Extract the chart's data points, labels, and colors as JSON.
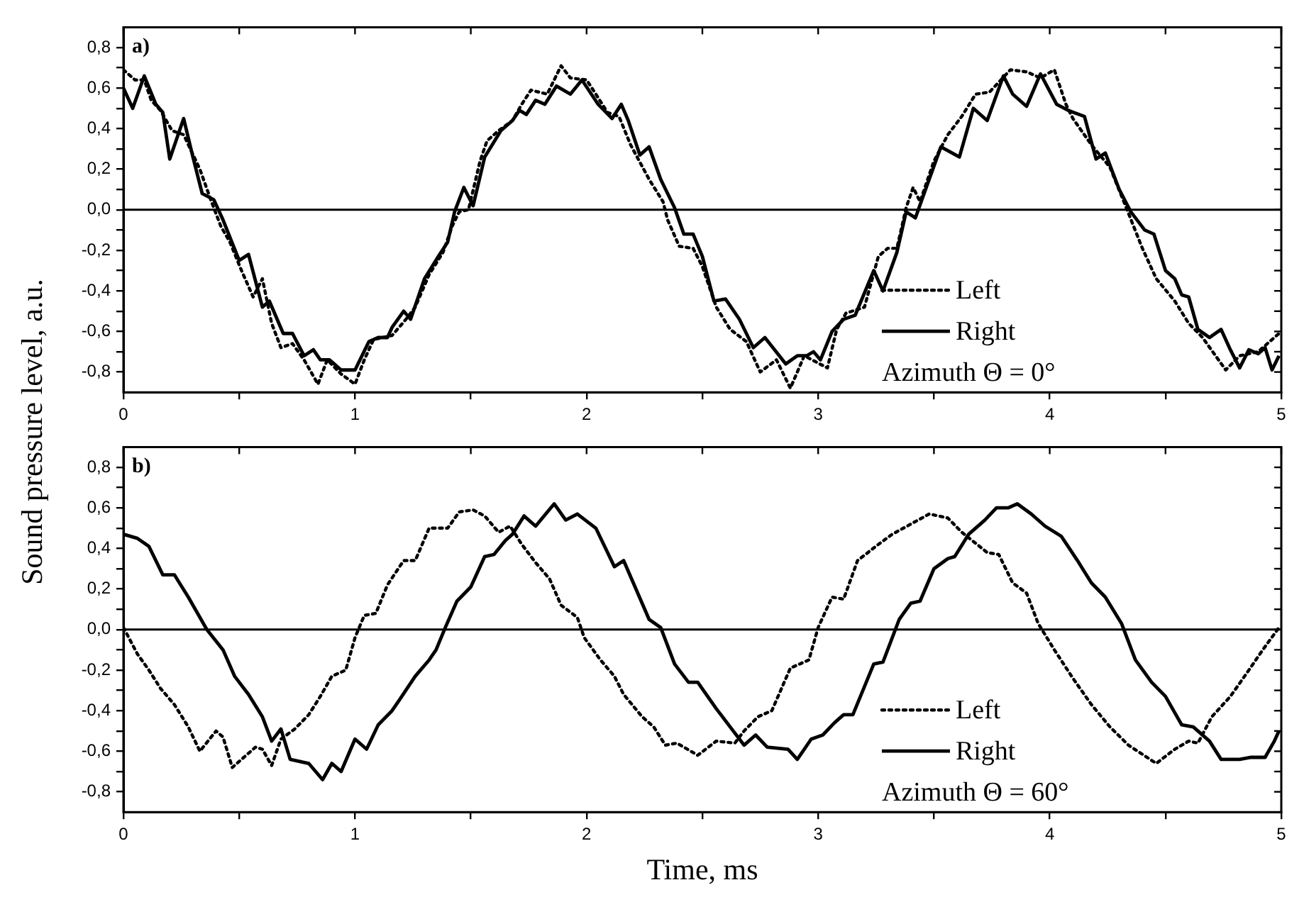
{
  "chart_data": [
    {
      "type": "line",
      "ylabel": "Sound pressure level, a.u.",
      "annotations": [
        "a)",
        "Azimuth Θ = 0°"
      ],
      "legend": "bottom right",
      "grid": false,
      "marker": "none",
      "xlim": [
        0,
        5
      ],
      "ylim": [
        -0.9,
        0.9
      ],
      "xticks": [
        0,
        {
          "value": 0.5,
          "label": null
        },
        1,
        {
          "value": 1.5,
          "label": null
        },
        2,
        {
          "value": 2.5,
          "label": null
        },
        3,
        {
          "value": 3.5,
          "label": null
        },
        4,
        {
          "value": 4.5,
          "label": null
        },
        5
      ],
      "yticks": [
        {
          "value": -0.8,
          "label": "-0,8"
        },
        {
          "value": -0.7,
          "label": null
        },
        {
          "value": -0.6,
          "label": "-0,6"
        },
        {
          "value": -0.5,
          "label": null
        },
        {
          "value": -0.4,
          "label": "-0,4"
        },
        {
          "value": -0.3,
          "label": null
        },
        {
          "value": -0.2,
          "label": "-0,2"
        },
        {
          "value": -0.1,
          "label": null
        },
        {
          "value": 0,
          "label": "0,0"
        },
        {
          "value": 0.1,
          "label": null
        },
        {
          "value": 0.2,
          "label": "0,2"
        },
        {
          "value": 0.3,
          "label": null
        },
        {
          "value": 0.4,
          "label": "0,4"
        },
        {
          "value": 0.5,
          "label": null
        },
        {
          "value": 0.6,
          "label": "0,6"
        },
        {
          "value": 0.7,
          "label": null
        },
        {
          "value": 0.8,
          "label": "0,8"
        }
      ],
      "ref_lines": [
        {
          "axis": "y",
          "value": 0,
          "color": "#000000",
          "line_style": "solid"
        }
      ],
      "series": [
        {
          "name": "Left",
          "color": "#000000",
          "line_style": "dotted",
          "x": [
            0,
            0.05,
            0.09,
            0.12,
            0.16,
            0.21,
            0.26,
            0.33,
            0.38,
            0.42,
            0.46,
            0.51,
            0.56,
            0.6,
            0.64,
            0.68,
            0.73,
            0.78,
            0.84,
            0.88,
            0.94,
            1.0,
            1.04,
            1.08,
            1.16,
            1.22,
            1.26,
            1.32,
            1.38,
            1.42,
            1.45,
            1.49,
            1.54,
            1.57,
            1.62,
            1.68,
            1.72,
            1.76,
            1.83,
            1.89,
            1.93,
            2.0,
            2.04,
            2.09,
            2.14,
            2.19,
            2.27,
            2.33,
            2.35,
            2.4,
            2.46,
            2.5,
            2.56,
            2.62,
            2.69,
            2.75,
            2.82,
            2.88,
            2.94,
            3.04,
            3.08,
            3.12,
            3.2,
            3.26,
            3.3,
            3.34,
            3.38,
            3.41,
            3.44,
            3.5,
            3.56,
            3.62,
            3.68,
            3.74,
            3.83,
            3.9,
            3.96,
            4.02,
            4.07,
            4.1,
            4.18,
            4.26,
            4.32,
            4.4,
            4.46,
            4.54,
            4.6,
            4.66,
            4.76,
            4.82,
            4.9,
            4.99
          ],
          "values": [
            0.69,
            0.64,
            0.64,
            0.54,
            0.49,
            0.39,
            0.37,
            0.2,
            0.04,
            -0.08,
            -0.16,
            -0.3,
            -0.43,
            -0.34,
            -0.56,
            -0.68,
            -0.66,
            -0.74,
            -0.86,
            -0.74,
            -0.81,
            -0.86,
            -0.74,
            -0.64,
            -0.62,
            -0.54,
            -0.48,
            -0.32,
            -0.21,
            -0.08,
            -0.01,
            0.0,
            0.24,
            0.34,
            0.39,
            0.44,
            0.52,
            0.59,
            0.57,
            0.71,
            0.65,
            0.64,
            0.57,
            0.48,
            0.46,
            0.32,
            0.15,
            0.04,
            -0.05,
            -0.18,
            -0.19,
            -0.28,
            -0.48,
            -0.59,
            -0.65,
            -0.8,
            -0.74,
            -0.88,
            -0.72,
            -0.78,
            -0.59,
            -0.51,
            -0.48,
            -0.23,
            -0.19,
            -0.19,
            0.01,
            0.11,
            0.04,
            0.24,
            0.37,
            0.46,
            0.57,
            0.58,
            0.69,
            0.68,
            0.65,
            0.69,
            0.52,
            0.45,
            0.32,
            0.21,
            0.04,
            -0.19,
            -0.34,
            -0.45,
            -0.56,
            -0.63,
            -0.79,
            -0.72,
            -0.7,
            -0.61
          ]
        },
        {
          "name": "Right",
          "color": "#000000",
          "line_style": "solid",
          "x": [
            0,
            0.04,
            0.09,
            0.14,
            0.17,
            0.2,
            0.26,
            0.3,
            0.34,
            0.39,
            0.43,
            0.5,
            0.54,
            0.6,
            0.63,
            0.69,
            0.73,
            0.78,
            0.82,
            0.85,
            0.89,
            0.94,
            1.0,
            1.06,
            1.1,
            1.14,
            1.16,
            1.21,
            1.24,
            1.3,
            1.36,
            1.4,
            1.43,
            1.47,
            1.51,
            1.56,
            1.63,
            1.68,
            1.71,
            1.74,
            1.78,
            1.82,
            1.87,
            1.93,
            1.98,
            2.05,
            2.11,
            2.15,
            2.18,
            2.23,
            2.27,
            2.32,
            2.38,
            2.42,
            2.46,
            2.5,
            2.55,
            2.6,
            2.66,
            2.72,
            2.77,
            2.86,
            2.91,
            2.95,
            2.98,
            3.01,
            3.06,
            3.11,
            3.16,
            3.24,
            3.28,
            3.34,
            3.38,
            3.42,
            3.47,
            3.53,
            3.61,
            3.67,
            3.73,
            3.8,
            3.84,
            3.9,
            3.96,
            4.03,
            4.08,
            4.15,
            4.2,
            4.24,
            4.3,
            4.35,
            4.41,
            4.45,
            4.5,
            4.54,
            4.57,
            4.6,
            4.64,
            4.69,
            4.74,
            4.78,
            4.82,
            4.86,
            4.9,
            4.93,
            4.96,
            4.99
          ],
          "values": [
            0.6,
            0.5,
            0.66,
            0.52,
            0.48,
            0.25,
            0.45,
            0.26,
            0.08,
            0.05,
            -0.05,
            -0.25,
            -0.22,
            -0.48,
            -0.45,
            -0.61,
            -0.61,
            -0.72,
            -0.69,
            -0.74,
            -0.74,
            -0.79,
            -0.79,
            -0.65,
            -0.63,
            -0.63,
            -0.58,
            -0.5,
            -0.54,
            -0.34,
            -0.23,
            -0.16,
            -0.01,
            0.11,
            0.02,
            0.26,
            0.39,
            0.44,
            0.49,
            0.47,
            0.54,
            0.52,
            0.61,
            0.57,
            0.64,
            0.52,
            0.45,
            0.52,
            0.44,
            0.27,
            0.31,
            0.15,
            0.01,
            -0.12,
            -0.12,
            -0.23,
            -0.45,
            -0.44,
            -0.54,
            -0.68,
            -0.63,
            -0.76,
            -0.72,
            -0.72,
            -0.7,
            -0.74,
            -0.6,
            -0.54,
            -0.52,
            -0.3,
            -0.4,
            -0.21,
            -0.01,
            -0.04,
            0.12,
            0.31,
            0.26,
            0.5,
            0.44,
            0.66,
            0.57,
            0.51,
            0.67,
            0.52,
            0.49,
            0.46,
            0.25,
            0.28,
            0.1,
            -0.01,
            -0.1,
            -0.12,
            -0.3,
            -0.34,
            -0.42,
            -0.43,
            -0.59,
            -0.63,
            -0.59,
            -0.69,
            -0.78,
            -0.69,
            -0.71,
            -0.68,
            -0.79,
            -0.72
          ]
        }
      ]
    },
    {
      "type": "line",
      "xlabel": "Time, ms",
      "annotations": [
        "b)",
        "Azimuth Θ = 60°"
      ],
      "legend": "bottom right",
      "grid": false,
      "marker": "none",
      "xlim": [
        0,
        5
      ],
      "ylim": [
        -0.9,
        0.9
      ],
      "xticks": [
        0,
        {
          "value": 0.5,
          "label": null
        },
        1,
        {
          "value": 1.5,
          "label": null
        },
        2,
        {
          "value": 2.5,
          "label": null
        },
        3,
        {
          "value": 3.5,
          "label": null
        },
        4,
        {
          "value": 4.5,
          "label": null
        },
        5
      ],
      "yticks": [
        {
          "value": -0.8,
          "label": "-0,8"
        },
        {
          "value": -0.7,
          "label": null
        },
        {
          "value": -0.6,
          "label": "-0,6"
        },
        {
          "value": -0.5,
          "label": null
        },
        {
          "value": -0.4,
          "label": "-0,4"
        },
        {
          "value": -0.3,
          "label": null
        },
        {
          "value": -0.2,
          "label": "-0,2"
        },
        {
          "value": -0.1,
          "label": null
        },
        {
          "value": 0,
          "label": "0,0"
        },
        {
          "value": 0.1,
          "label": null
        },
        {
          "value": 0.2,
          "label": "0,2"
        },
        {
          "value": 0.3,
          "label": null
        },
        {
          "value": 0.4,
          "label": "0,4"
        },
        {
          "value": 0.5,
          "label": null
        },
        {
          "value": 0.6,
          "label": "0,6"
        },
        {
          "value": 0.7,
          "label": null
        },
        {
          "value": 0.8,
          "label": "0,8"
        }
      ],
      "ref_lines": [
        {
          "axis": "y",
          "value": 0,
          "color": "#000000",
          "line_style": "solid"
        }
      ],
      "series": [
        {
          "name": "Left",
          "color": "#000000",
          "line_style": "dotted",
          "x": [
            0,
            0.06,
            0.11,
            0.16,
            0.22,
            0.28,
            0.33,
            0.4,
            0.43,
            0.47,
            0.52,
            0.57,
            0.6,
            0.64,
            0.68,
            0.74,
            0.8,
            0.85,
            0.9,
            0.96,
            1.0,
            1.04,
            1.09,
            1.14,
            1.21,
            1.26,
            1.32,
            1.36,
            1.4,
            1.45,
            1.51,
            1.56,
            1.62,
            1.67,
            1.72,
            1.78,
            1.84,
            1.89,
            1.96,
            1.99,
            2.06,
            2.12,
            2.16,
            2.24,
            2.29,
            2.34,
            2.39,
            2.48,
            2.56,
            2.64,
            2.68,
            2.74,
            2.8,
            2.88,
            2.96,
            3.0,
            3.06,
            3.11,
            3.17,
            3.26,
            3.32,
            3.4,
            3.48,
            3.56,
            3.62,
            3.73,
            3.78,
            3.84,
            3.9,
            3.95,
            4.02,
            4.1,
            4.18,
            4.26,
            4.34,
            4.46,
            4.54,
            4.6,
            4.64,
            4.7,
            4.78,
            4.86,
            4.92,
            4.99
          ],
          "values": [
            0.01,
            -0.12,
            -0.2,
            -0.29,
            -0.37,
            -0.48,
            -0.6,
            -0.5,
            -0.53,
            -0.68,
            -0.63,
            -0.58,
            -0.59,
            -0.67,
            -0.54,
            -0.49,
            -0.42,
            -0.33,
            -0.23,
            -0.2,
            -0.04,
            0.07,
            0.08,
            0.22,
            0.34,
            0.34,
            0.5,
            0.5,
            0.5,
            0.58,
            0.59,
            0.56,
            0.48,
            0.51,
            0.42,
            0.33,
            0.25,
            0.12,
            0.06,
            -0.04,
            -0.15,
            -0.23,
            -0.32,
            -0.43,
            -0.48,
            -0.57,
            -0.56,
            -0.62,
            -0.55,
            -0.56,
            -0.5,
            -0.43,
            -0.4,
            -0.19,
            -0.15,
            0.01,
            0.16,
            0.15,
            0.34,
            0.42,
            0.47,
            0.52,
            0.57,
            0.55,
            0.48,
            0.38,
            0.37,
            0.23,
            0.18,
            0.03,
            -0.1,
            -0.24,
            -0.37,
            -0.48,
            -0.57,
            -0.66,
            -0.59,
            -0.55,
            -0.56,
            -0.43,
            -0.33,
            -0.2,
            -0.1,
            0.01
          ]
        },
        {
          "name": "Right",
          "color": "#000000",
          "line_style": "solid",
          "x": [
            0,
            0.06,
            0.11,
            0.17,
            0.22,
            0.28,
            0.36,
            0.43,
            0.48,
            0.54,
            0.6,
            0.64,
            0.68,
            0.72,
            0.8,
            0.86,
            0.9,
            0.94,
            1.0,
            1.05,
            1.1,
            1.16,
            1.19,
            1.26,
            1.32,
            1.35,
            1.39,
            1.44,
            1.5,
            1.56,
            1.6,
            1.65,
            1.68,
            1.73,
            1.78,
            1.86,
            1.91,
            1.96,
            2.04,
            2.12,
            2.16,
            2.27,
            2.32,
            2.38,
            2.44,
            2.48,
            2.56,
            2.62,
            2.68,
            2.73,
            2.78,
            2.87,
            2.91,
            2.97,
            3.02,
            3.07,
            3.11,
            3.15,
            3.24,
            3.28,
            3.35,
            3.4,
            3.44,
            3.5,
            3.56,
            3.59,
            3.65,
            3.72,
            3.77,
            3.82,
            3.86,
            3.92,
            3.98,
            4.05,
            4.12,
            4.18,
            4.24,
            4.31,
            4.37,
            4.44,
            4.5,
            4.57,
            4.62,
            4.69,
            4.74,
            4.82,
            4.87,
            4.93,
            4.97,
            4.99
          ],
          "values": [
            0.47,
            0.45,
            0.41,
            0.27,
            0.27,
            0.16,
            0.0,
            -0.1,
            -0.23,
            -0.32,
            -0.43,
            -0.55,
            -0.49,
            -0.64,
            -0.66,
            -0.74,
            -0.66,
            -0.7,
            -0.54,
            -0.59,
            -0.47,
            -0.4,
            -0.35,
            -0.23,
            -0.15,
            -0.1,
            0.01,
            0.14,
            0.21,
            0.36,
            0.37,
            0.44,
            0.47,
            0.56,
            0.51,
            0.62,
            0.54,
            0.57,
            0.5,
            0.31,
            0.34,
            0.05,
            0.01,
            -0.17,
            -0.26,
            -0.26,
            -0.39,
            -0.48,
            -0.57,
            -0.52,
            -0.58,
            -0.59,
            -0.64,
            -0.54,
            -0.52,
            -0.46,
            -0.42,
            -0.42,
            -0.17,
            -0.16,
            0.05,
            0.13,
            0.14,
            0.3,
            0.35,
            0.36,
            0.47,
            0.54,
            0.6,
            0.6,
            0.62,
            0.57,
            0.51,
            0.46,
            0.34,
            0.23,
            0.16,
            0.03,
            -0.15,
            -0.26,
            -0.33,
            -0.47,
            -0.48,
            -0.55,
            -0.64,
            -0.64,
            -0.63,
            -0.63,
            -0.55,
            -0.5
          ]
        }
      ]
    }
  ]
}
